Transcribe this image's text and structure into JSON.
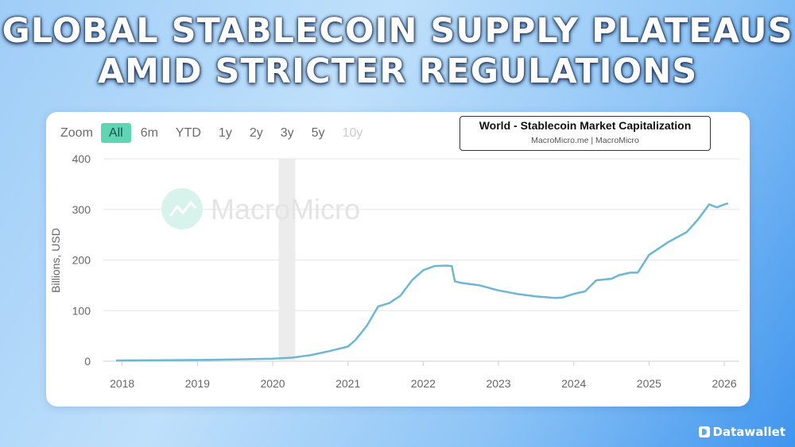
{
  "headline": {
    "line1": "GLOBAL STABLECOIN SUPPLY PLATEAUS",
    "line2": "AMID STRICTER REGULATIONS"
  },
  "zoom": {
    "label": "Zoom",
    "buttons": [
      {
        "label": "All",
        "active": true,
        "disabled": false
      },
      {
        "label": "6m",
        "active": false,
        "disabled": false
      },
      {
        "label": "YTD",
        "active": false,
        "disabled": false
      },
      {
        "label": "1y",
        "active": false,
        "disabled": false
      },
      {
        "label": "2y",
        "active": false,
        "disabled": false
      },
      {
        "label": "3y",
        "active": false,
        "disabled": false
      },
      {
        "label": "5y",
        "active": false,
        "disabled": false
      },
      {
        "label": "10y",
        "active": false,
        "disabled": true
      }
    ]
  },
  "watermark": "MacroMicro",
  "brand": "Datawallet",
  "chart_data": {
    "type": "line",
    "title": "World - Stablecoin Market Capitalization",
    "subtitle": "MacroMicro.me | MacroMicro",
    "ylabel": "Billions, USD",
    "xlabel": "",
    "ylim": [
      0,
      400
    ],
    "yticks": [
      0,
      100,
      200,
      300,
      400
    ],
    "xlim": [
      2017.75,
      2026.2
    ],
    "xticks": [
      "2018",
      "2019",
      "2020",
      "2021",
      "2022",
      "2023",
      "2024",
      "2025",
      "2026"
    ],
    "grid": true,
    "line_color": "#6bb7d4",
    "shaded_band": {
      "from": 2020.08,
      "to": 2020.3
    },
    "series": [
      {
        "x": [
          2017.92,
          2018.5,
          2019.0,
          2019.5,
          2020.0,
          2020.25,
          2020.5,
          2020.75,
          2021.0,
          2021.1,
          2021.25,
          2021.4,
          2021.55,
          2021.7,
          2021.85,
          2022.0,
          2022.15,
          2022.3,
          2022.38,
          2022.42,
          2022.5,
          2022.75,
          2023.0,
          2023.25,
          2023.5,
          2023.75,
          2023.85,
          2024.0,
          2024.15,
          2024.3,
          2024.5,
          2024.6,
          2024.75,
          2024.85,
          2025.0,
          2025.25,
          2025.5,
          2025.65,
          2025.8,
          2025.9,
          2026.0,
          2026.05
        ],
        "y": [
          1.5,
          2,
          2.5,
          3.5,
          5,
          7,
          12,
          20,
          29,
          42,
          70,
          108,
          115,
          130,
          160,
          180,
          188,
          189,
          188,
          158,
          155,
          150,
          140,
          133,
          128,
          125,
          126,
          133,
          138,
          160,
          163,
          170,
          175,
          175,
          210,
          235,
          255,
          280,
          310,
          304,
          310,
          312
        ]
      }
    ]
  }
}
